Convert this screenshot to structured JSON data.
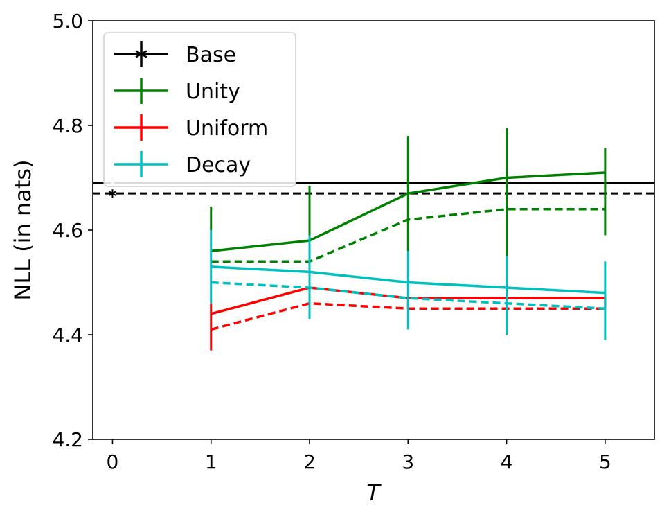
{
  "chart_data": {
    "type": "line",
    "xlabel": "T",
    "ylabel": "NLL (in nats)",
    "xlim": [
      -0.2,
      5.5
    ],
    "ylim": [
      4.2,
      5.0
    ],
    "xticks": [
      0,
      1,
      2,
      3,
      4,
      5
    ],
    "yticks": [
      4.2,
      4.4,
      4.6,
      4.8,
      5.0
    ],
    "xtick_labels": [
      "0",
      "1",
      "2",
      "3",
      "4",
      "5"
    ],
    "ytick_labels": [
      "4.2",
      "4.4",
      "4.6",
      "4.8",
      "5.0"
    ],
    "grid": false,
    "legend_position": "top-left",
    "base": {
      "name": "Base",
      "color": "#000000",
      "solid_value": 4.69,
      "dashed_value": 4.67
    },
    "series": [
      {
        "name": "Unity",
        "color": "#008000",
        "x": [
          1,
          2,
          3,
          4,
          5
        ],
        "solid": [
          4.56,
          4.58,
          4.67,
          4.7,
          4.71
        ],
        "dashed": [
          4.54,
          4.54,
          4.62,
          4.64,
          4.64
        ],
        "err_low": [
          4.6,
          4.53,
          4.56,
          4.55,
          4.59
        ],
        "err_high": [
          4.645,
          4.685,
          4.78,
          4.795,
          4.757
        ]
      },
      {
        "name": "Uniform",
        "color": "#ff0000",
        "x": [
          1,
          2,
          3,
          4,
          5
        ],
        "solid": [
          4.44,
          4.49,
          4.47,
          4.47,
          4.47
        ],
        "dashed": [
          4.41,
          4.46,
          4.45,
          4.45,
          4.45
        ],
        "err_low": [
          4.37,
          4.46,
          4.45,
          4.45,
          4.45
        ],
        "err_high": [
          4.46,
          4.49,
          4.47,
          4.47,
          4.47
        ]
      },
      {
        "name": "Decay",
        "color": "#00bfbf",
        "x": [
          1,
          2,
          3,
          4,
          5
        ],
        "solid": [
          4.53,
          4.52,
          4.5,
          4.49,
          4.48
        ],
        "dashed": [
          4.5,
          4.49,
          4.47,
          4.46,
          4.45
        ],
        "err_low": [
          4.46,
          4.43,
          4.41,
          4.4,
          4.39
        ],
        "err_high": [
          4.6,
          4.59,
          4.56,
          4.55,
          4.54
        ]
      }
    ]
  }
}
